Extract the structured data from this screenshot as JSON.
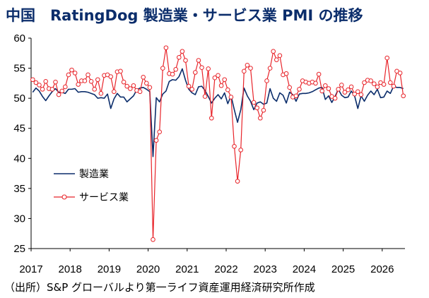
{
  "title": "中国　RatingDog 製造業・サービス業 PMI の推移",
  "source": "（出所）S&P グローバルより第一ライフ資産運用経済研究所作成",
  "colors": {
    "manufacturing": "#0b2d6b",
    "services": "#e8242a",
    "axis": "#000000"
  },
  "chart_data": {
    "type": "line",
    "ylim": [
      25,
      60
    ],
    "y_ticks": [
      25,
      30,
      35,
      40,
      45,
      50,
      55,
      60
    ],
    "x_ticks": [
      "2017",
      "2018",
      "2019",
      "2020",
      "2021",
      "2022",
      "2023",
      "2024",
      "2025",
      "2026"
    ],
    "x_start": "2017-01",
    "legend_position": "center-left",
    "series": [
      {
        "name": "製造業",
        "style": "line",
        "values": [
          51.0,
          51.7,
          51.2,
          50.3,
          49.6,
          50.4,
          51.1,
          51.6,
          51.0,
          51.0,
          50.8,
          51.5,
          51.5,
          51.6,
          51.0,
          51.1,
          51.1,
          51.0,
          50.8,
          50.6,
          50.0,
          50.1,
          50.0,
          50.7,
          48.3,
          49.9,
          50.8,
          50.2,
          50.2,
          49.4,
          49.9,
          50.4,
          51.4,
          51.7,
          51.8,
          51.5,
          51.1,
          40.3,
          50.1,
          49.4,
          50.7,
          51.2,
          52.8,
          53.1,
          53.0,
          53.6,
          54.9,
          53.0,
          51.5,
          50.9,
          50.6,
          51.9,
          52.0,
          51.3,
          50.3,
          49.2,
          50.0,
          50.6,
          49.9,
          50.9,
          49.1,
          50.4,
          48.1,
          46.0,
          48.1,
          51.7,
          50.4,
          49.5,
          48.1,
          49.2,
          49.4,
          49.0,
          49.2,
          51.6,
          50.0,
          49.5,
          50.9,
          50.5,
          49.2,
          51.0,
          50.6,
          49.5,
          50.7,
          50.8,
          50.8,
          50.9,
          51.1,
          51.4,
          51.7,
          51.8,
          49.8,
          50.4,
          49.3,
          50.3,
          51.5,
          50.5,
          50.1,
          50.2,
          51.2,
          50.4,
          48.3,
          50.4,
          49.5,
          50.5,
          51.2,
          50.6,
          51.5,
          50.1,
          50.2,
          51.2,
          50.8,
          52.0,
          51.8,
          51.8,
          51.6
        ]
      },
      {
        "name": "サービス業",
        "style": "line-with-circles",
        "values": [
          53.1,
          52.6,
          52.2,
          51.5,
          52.8,
          51.6,
          51.5,
          52.7,
          50.6,
          51.2,
          51.9,
          53.9,
          54.7,
          54.2,
          52.3,
          52.9,
          52.9,
          53.9,
          52.8,
          51.5,
          53.1,
          50.8,
          53.8,
          53.9,
          53.6,
          51.1,
          54.4,
          54.5,
          52.7,
          52.0,
          51.6,
          52.1,
          51.3,
          51.1,
          53.5,
          52.5,
          51.8,
          26.5,
          43.0,
          44.4,
          55.0,
          58.4,
          54.1,
          54.0,
          54.8,
          56.8,
          57.8,
          56.3,
          52.0,
          51.5,
          54.3,
          56.3,
          55.1,
          50.3,
          54.9,
          46.7,
          53.4,
          53.8,
          52.1,
          53.1,
          51.4,
          50.2,
          42.0,
          36.2,
          41.4,
          54.5,
          55.5,
          55.0,
          49.3,
          48.4,
          46.7,
          48.0,
          52.9,
          55.0,
          57.8,
          56.4,
          57.1,
          53.9,
          54.1,
          51.8,
          50.2,
          50.4,
          51.5,
          52.9,
          52.7,
          52.5,
          52.7,
          52.5,
          54.0,
          51.2,
          52.1,
          51.6,
          50.3,
          50.0,
          51.5,
          52.2,
          51.0,
          51.4,
          51.9,
          50.7,
          51.1,
          50.6,
          52.6,
          53.0,
          52.9,
          52.4,
          51.9,
          52.6,
          52.3,
          56.7,
          52.6,
          52.0,
          54.5,
          54.2,
          50.4
        ]
      }
    ]
  }
}
